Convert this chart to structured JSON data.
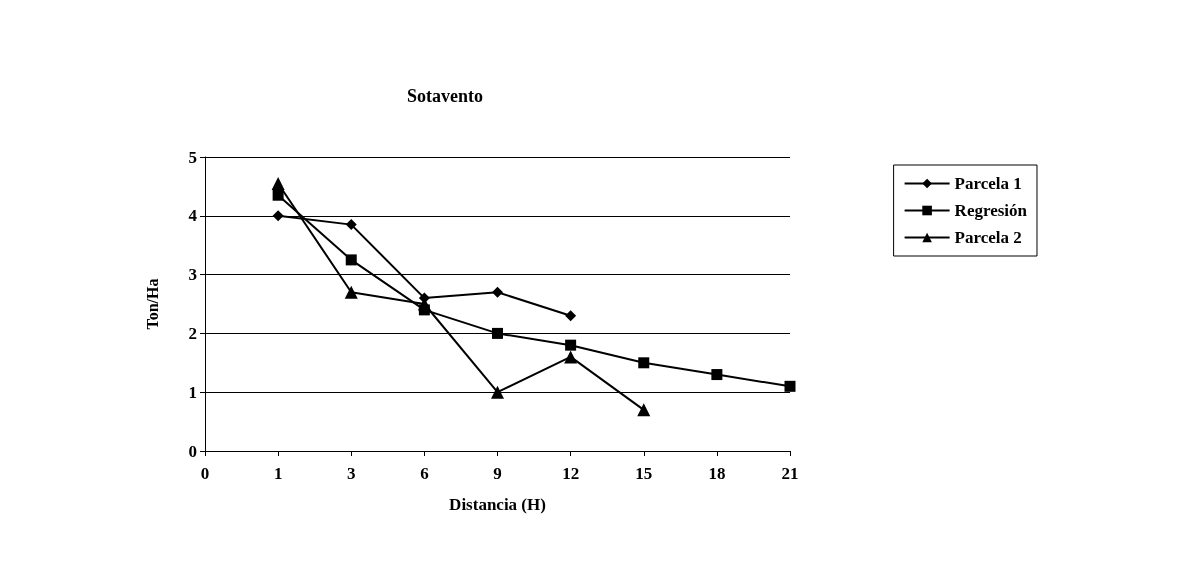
{
  "chart_data": {
    "type": "line",
    "title": "Sotavento",
    "xlabel": "Distancia (H)",
    "ylabel": "Ton/Ha",
    "categories": [
      "0",
      "1",
      "3",
      "6",
      "9",
      "12",
      "15",
      "18",
      "21"
    ],
    "series": [
      {
        "name": "Parcela 1",
        "color": "#000000",
        "marker": "diamond",
        "values": [
          null,
          4.0,
          3.85,
          2.6,
          2.7,
          2.3,
          null,
          null,
          null
        ]
      },
      {
        "name": "Regresión",
        "color": "#000000",
        "marker": "square",
        "values": [
          null,
          4.35,
          3.25,
          2.4,
          2.0,
          1.8,
          1.5,
          1.3,
          1.1
        ]
      },
      {
        "name": "Parcela 2",
        "color": "#000000",
        "marker": "triangle",
        "values": [
          null,
          4.55,
          2.7,
          2.5,
          1.0,
          1.6,
          0.7,
          null,
          null
        ]
      }
    ],
    "ylim": [
      0,
      5
    ],
    "yticks": [
      0,
      1,
      2,
      3,
      4,
      5
    ],
    "grid": "y",
    "legend": "right"
  }
}
